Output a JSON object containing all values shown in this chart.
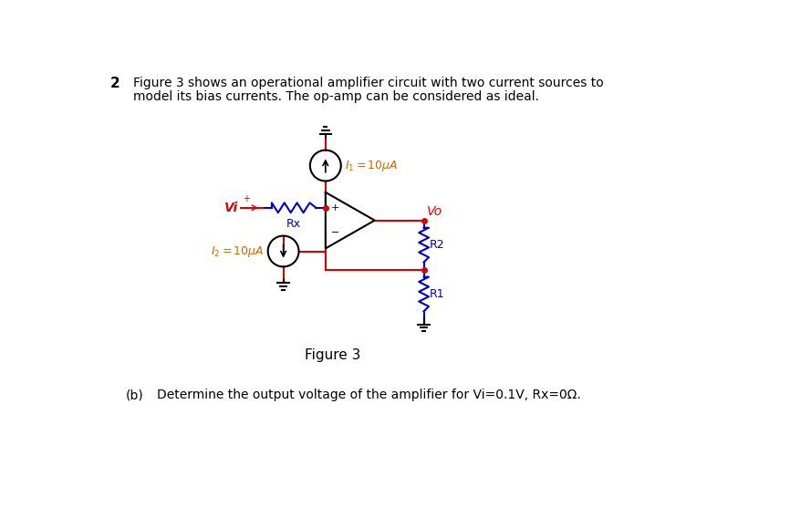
{
  "title_number": "2",
  "title_text_line1": "Figure 3 shows an operational amplifier circuit with two current sources to",
  "title_text_line2": "model its bias currents. The op-amp can be considered as ideal.",
  "figure_caption": "Figure 3",
  "part_b_label": "(b)",
  "part_b_text": "Determine the output voltage of the amplifier for Vi=0.1V, Rx=0Ω.",
  "bg_color": "#ffffff",
  "red_color": "#dd0000",
  "blue_color": "#0000cc",
  "black_color": "#000000",
  "orange_color": "#cc6600",
  "i1_label": "$I_1{=}10\\mu A$",
  "i2_label": "$I_2{=}10\\mu A$",
  "vi_label": "Vi",
  "vo_label": "Vo",
  "rx_label": "Rx",
  "r1_label": "R1",
  "r2_label": "R2"
}
